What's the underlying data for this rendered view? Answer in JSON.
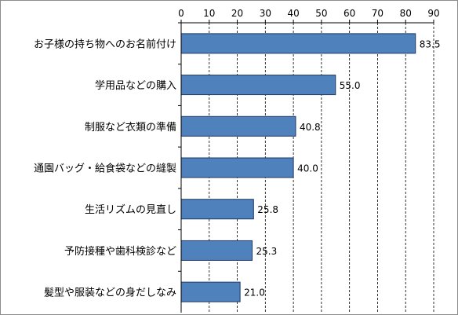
{
  "chart_data": {
    "type": "bar",
    "orientation": "horizontal",
    "categories": [
      "お子様の持ち物へのお名前付け",
      "学用品などの購入",
      "制服など衣類の準備",
      "通園バッグ・給食袋などの縫製",
      "生活リズムの見直し",
      "予防接種や歯科検診など",
      "髪型や服装などの身だしなみ"
    ],
    "values": [
      83.5,
      55.0,
      40.8,
      40.0,
      25.8,
      25.3,
      21.0
    ],
    "value_labels": [
      "83.5",
      "55.0",
      "40.8",
      "40.0",
      "25.8",
      "25.3",
      "21.0"
    ],
    "x_ticks": [
      "0",
      "10",
      "20",
      "30",
      "40",
      "50",
      "60",
      "70",
      "80",
      "90"
    ],
    "xlim": [
      0,
      90
    ],
    "title": "",
    "xlabel": "",
    "ylabel": "",
    "grid": "vertical dashed",
    "legend": "none",
    "colors": {
      "bar_fill": "#4F81BD",
      "bar_stroke": "#1F3864",
      "grid": "#000000",
      "frame": "#8c8c8c"
    }
  }
}
